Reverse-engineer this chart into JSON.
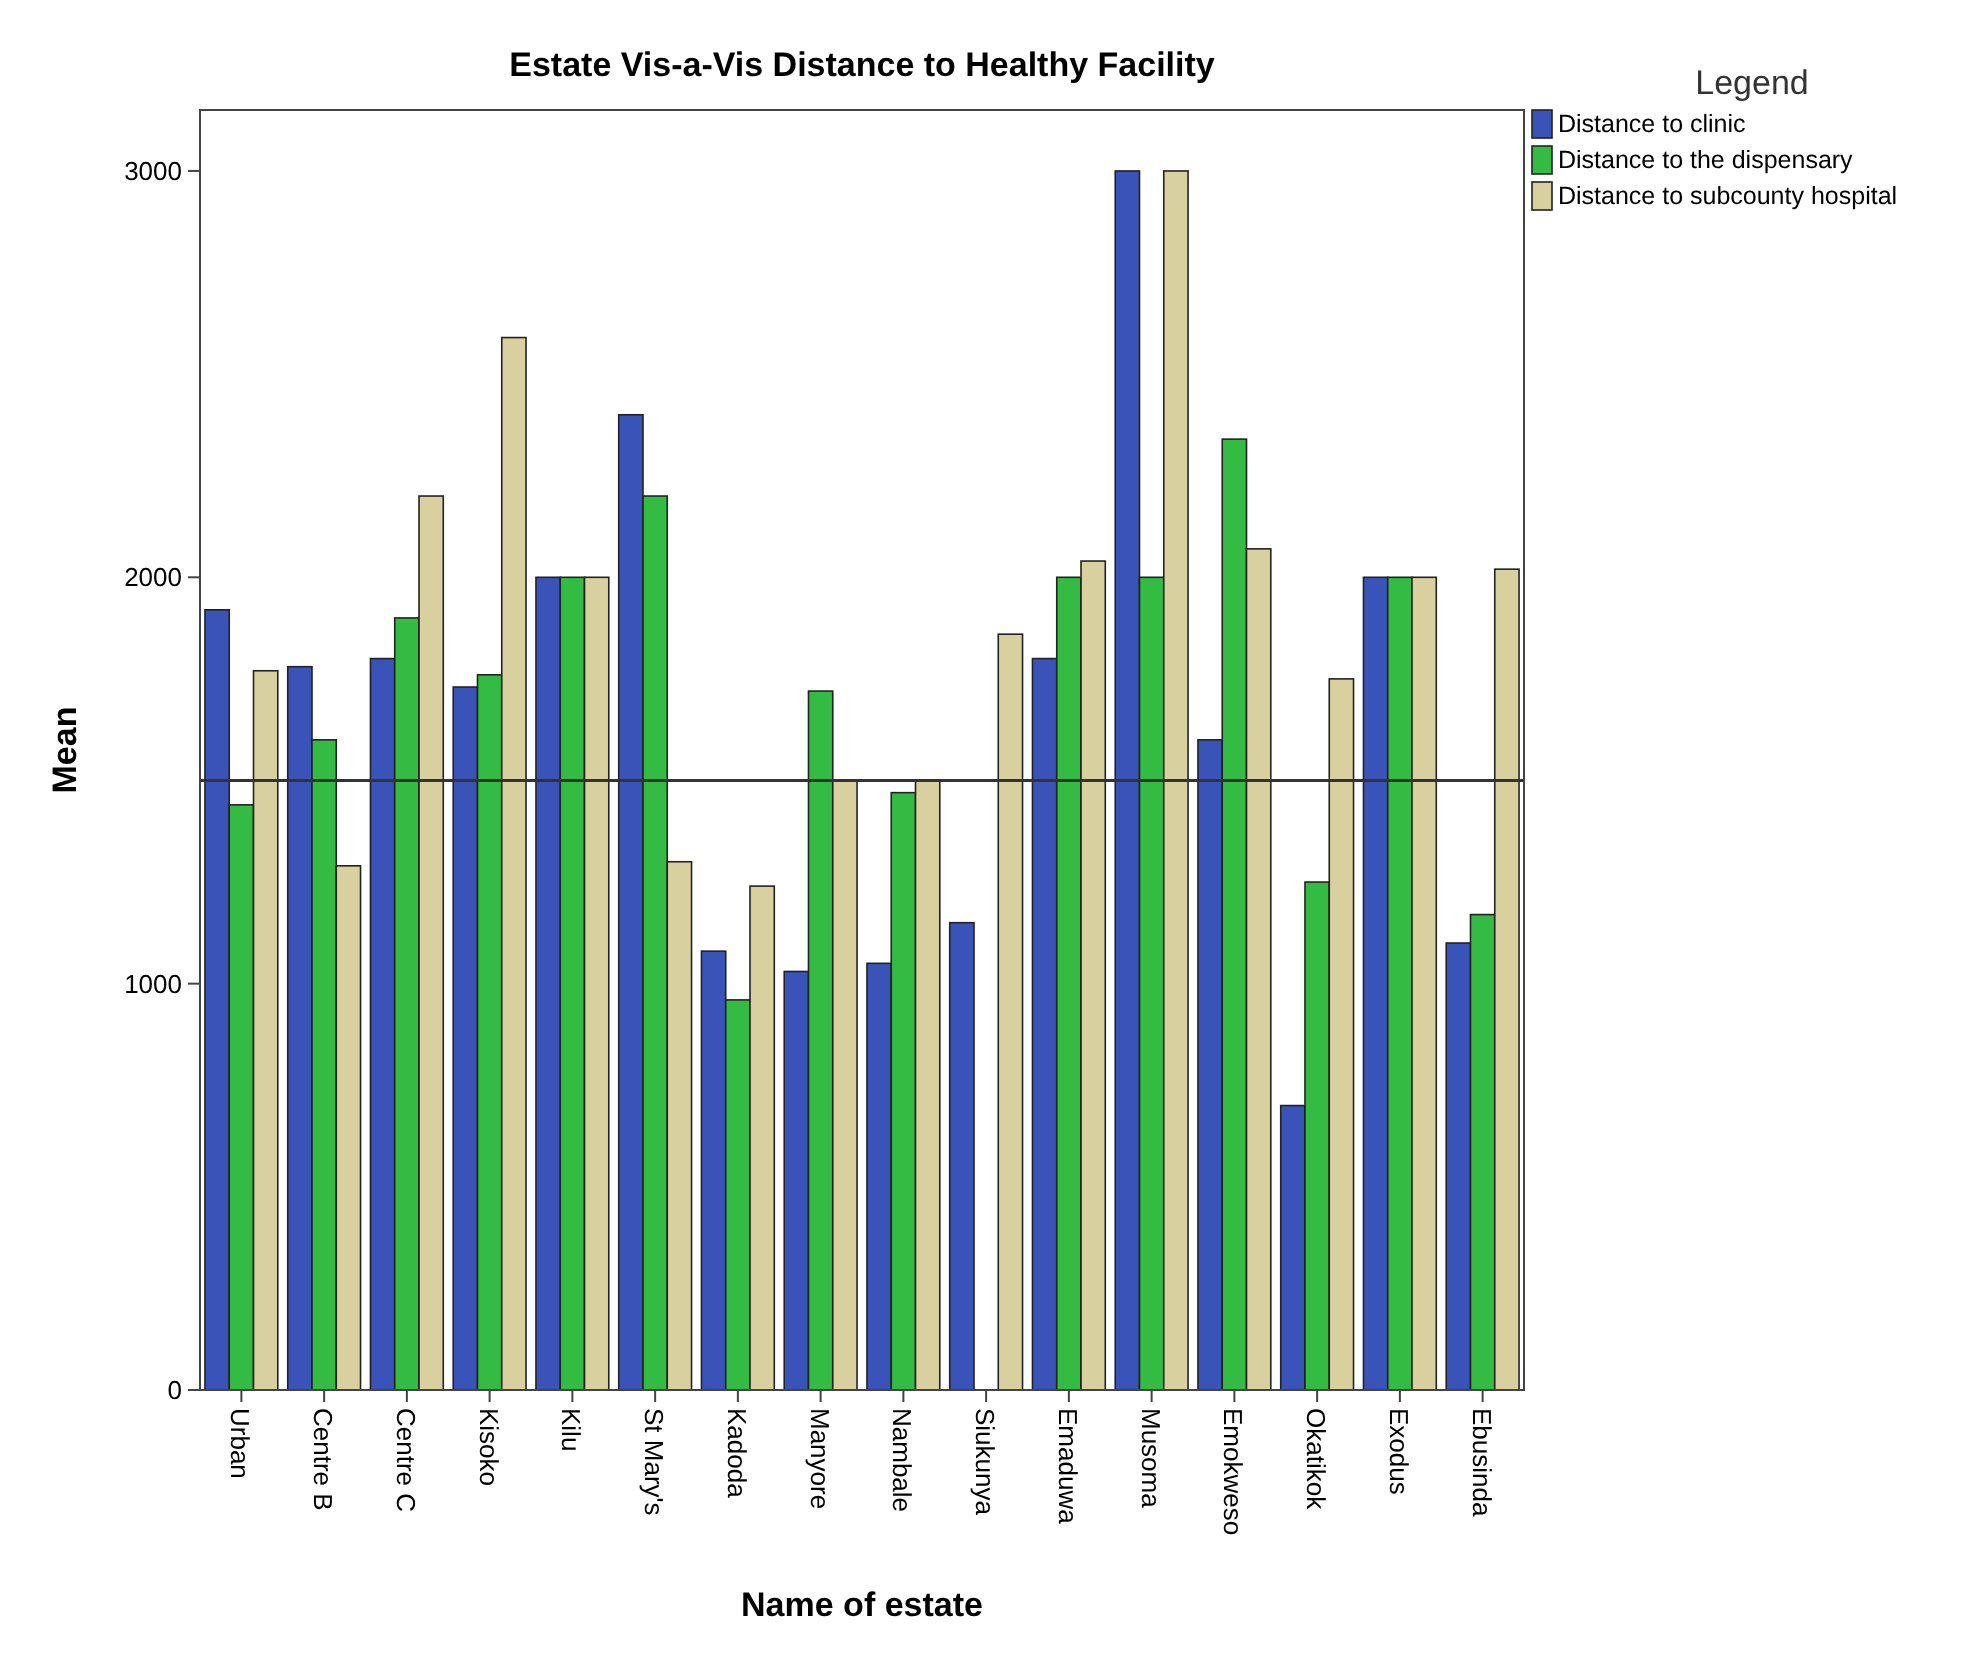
{
  "chart_data": {
    "type": "bar",
    "title": "Estate Vis-a-Vis Distance to Healthy Facility",
    "xlabel": "Name of estate",
    "ylabel": "Mean",
    "legend_title": "Legend",
    "legend": "top right",
    "categories": [
      "Urban",
      "Centre B",
      "Centre C",
      "Kisoko",
      "Kilu",
      "St Mary's",
      "Kadoda",
      "Manyore",
      "Nambale",
      "Siukunya",
      "Emaduwa",
      "Musoma",
      "Emokweso",
      "Okatikok",
      "Exodus",
      "Ebusinda"
    ],
    "series": [
      {
        "name": "Distance to clinic",
        "color": "#3a53b8",
        "values": [
          1920,
          1780,
          1800,
          1730,
          2000,
          2400,
          1080,
          1030,
          1050,
          1150,
          1800,
          3000,
          1600,
          700,
          2000,
          1100
        ]
      },
      {
        "name": "Distance to the dispensary",
        "color": "#33bb44",
        "values": [
          1440,
          1600,
          1900,
          1760,
          2000,
          2200,
          960,
          1720,
          1470,
          null,
          2000,
          2000,
          2340,
          1250,
          2000,
          1170
        ]
      },
      {
        "name": "Distance to subcounty hospital",
        "color": "#d9d0a0",
        "values": [
          1770,
          1290,
          2200,
          2590,
          2000,
          1300,
          1240,
          1500,
          1500,
          1860,
          2040,
          3000,
          2070,
          1750,
          2000,
          2020
        ]
      }
    ],
    "ylim": [
      0,
      3150
    ],
    "yticks": [
      0,
      1000,
      2000,
      3000
    ],
    "grid": false,
    "ref_lines": [
      {
        "axis": "y",
        "value": 1500,
        "color": "#333333"
      }
    ]
  }
}
